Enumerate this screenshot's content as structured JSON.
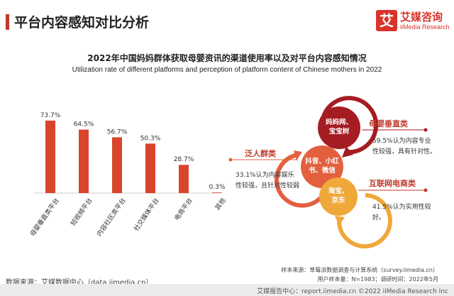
{
  "header": {
    "title": "平台内容感知对比分析",
    "logo_cn": "艾媒咨询",
    "logo_en": "iiMedia Research",
    "logo_mark": "艾"
  },
  "chart_data": {
    "type": "bar",
    "title": "2022年中国妈妈群体获取母婴资讯的渠道使用率以及对平台内容感知情况",
    "subtitle": "Utilization rate of different platforms and perception of platform content of Chinese mothers in 2022",
    "categories": [
      "母婴垂直类平台",
      "短视频平台",
      "内容社区类平台",
      "社交媒体平台",
      "电商平台",
      "其他"
    ],
    "values": [
      73.7,
      64.5,
      56.7,
      50.3,
      28.7,
      0.3
    ],
    "value_labels": [
      "73.7%",
      "64.5%",
      "56.7%",
      "50.3%",
      "28.7%",
      "0.3%"
    ],
    "ylim": [
      0,
      80
    ],
    "xlabel": "",
    "ylabel": "",
    "grid": false,
    "bar_color": "#d9452b"
  },
  "perception": {
    "bubbles": [
      {
        "label_line1": "妈妈网、",
        "label_line2": "宝宝树",
        "color": "#a51c22"
      },
      {
        "label_line1": "抖音、小红",
        "label_line2": "书、微信",
        "color": "#e3603f"
      },
      {
        "label_line1": "淘宝、",
        "label_line2": "京东",
        "color": "#f0a83a"
      }
    ],
    "items": [
      {
        "title": "母婴垂直类",
        "desc": "59.5%认为内容专业性较强，具有针对性。"
      },
      {
        "title": "泛人群类",
        "desc": "33.1%认为内容娱乐性较强，且针对性较弱"
      },
      {
        "title": "互联网电商类",
        "desc": "41.5%认为实用性较好。"
      }
    ]
  },
  "footer": {
    "source": "数据来源：艾媒数据中心（data.iimedia.cn）",
    "sample_source": "样本来源：草莓派数据调查与计算系统（survey.iimedia.cn）",
    "sample_info": "用户样本量：N=1983；调研时间：2022年5月",
    "bottom": "艾媒报告中心：report.iimedia.cn ©2022  iiMedia Research  Inc"
  },
  "colors": {
    "accent": "#c0392b",
    "bar": "#d9452b"
  }
}
